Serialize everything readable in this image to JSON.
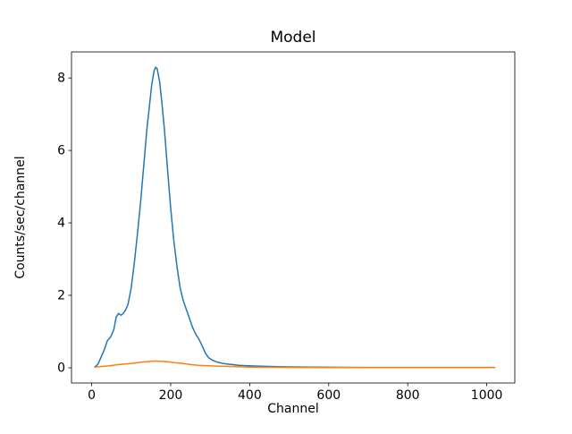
{
  "figure": {
    "background": "#ffffff"
  },
  "chart_data": {
    "type": "line",
    "title": "Model",
    "xlabel": "Channel",
    "ylabel": "Counts/sec/channel",
    "xlim": [
      -51,
      1071
    ],
    "ylim": [
      -0.42,
      8.72
    ],
    "xticks": [
      0,
      200,
      400,
      600,
      800,
      1000
    ],
    "yticks": [
      0,
      2,
      4,
      6,
      8
    ],
    "grid": false,
    "legend": null,
    "axis_color": "#000000",
    "series": [
      {
        "name": "line-1",
        "color": "#1f77b4",
        "x": [
          8,
          16,
          24,
          32,
          40,
          48,
          56,
          62,
          68,
          74,
          80,
          86,
          92,
          100,
          108,
          116,
          124,
          132,
          140,
          146,
          152,
          158,
          162,
          166,
          172,
          178,
          184,
          192,
          200,
          208,
          216,
          224,
          232,
          240,
          248,
          256,
          264,
          272,
          280,
          288,
          296,
          304,
          312,
          320,
          332,
          344,
          356,
          372,
          390,
          410,
          440,
          470,
          500,
          550,
          600,
          700,
          800,
          900,
          1020
        ],
        "y": [
          0.02,
          0.1,
          0.3,
          0.5,
          0.75,
          0.85,
          1.05,
          1.4,
          1.5,
          1.45,
          1.5,
          1.6,
          1.75,
          2.2,
          2.9,
          3.7,
          4.6,
          5.6,
          6.6,
          7.2,
          7.8,
          8.2,
          8.3,
          8.25,
          7.9,
          7.3,
          6.6,
          5.5,
          4.4,
          3.5,
          2.8,
          2.2,
          1.85,
          1.6,
          1.35,
          1.1,
          0.92,
          0.78,
          0.6,
          0.4,
          0.28,
          0.22,
          0.18,
          0.15,
          0.12,
          0.1,
          0.09,
          0.07,
          0.06,
          0.05,
          0.04,
          0.03,
          0.025,
          0.02,
          0.015,
          0.01,
          0.01,
          0.01,
          0.01
        ]
      },
      {
        "name": "line-2",
        "color": "#ff7f0e",
        "x": [
          8,
          40,
          70,
          100,
          130,
          150,
          160,
          175,
          190,
          210,
          230,
          250,
          270,
          290,
          310,
          340,
          370,
          400,
          450,
          500,
          600,
          700,
          800,
          900,
          1020
        ],
        "y": [
          0.02,
          0.05,
          0.09,
          0.12,
          0.16,
          0.18,
          0.185,
          0.18,
          0.17,
          0.14,
          0.12,
          0.09,
          0.07,
          0.06,
          0.05,
          0.04,
          0.03,
          0.02,
          0.015,
          0.01,
          0.008,
          0.006,
          0.005,
          0.005,
          0.005
        ]
      }
    ]
  }
}
